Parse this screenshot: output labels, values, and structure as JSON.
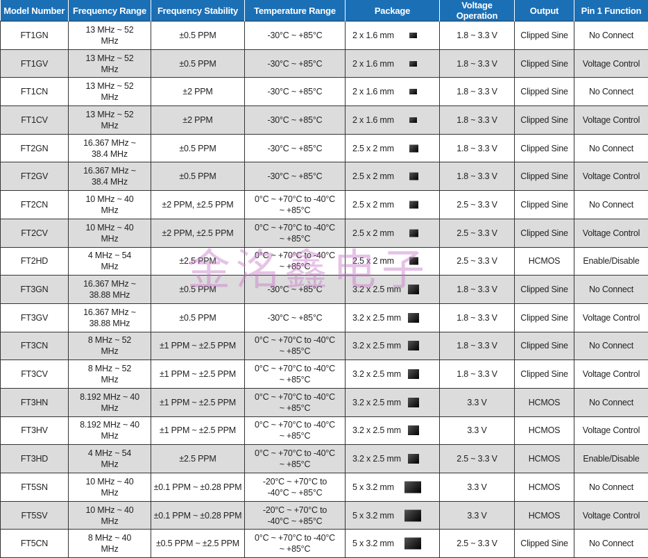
{
  "headers": [
    "Model Number",
    "Frequency Range",
    "Frequency Stability",
    "Temperature Range",
    "Package",
    "Voltage Operation",
    "Output",
    "Pin 1 Function"
  ],
  "watermark": "金洺鑫电子",
  "rows": [
    {
      "model": "FT1GN",
      "freq": "13 MHz ~ 52 MHz",
      "stab": "±0.5 PPM",
      "temp": "-30°C ~ +85°C",
      "pkg": "2 x 1.6 mm",
      "size": "s1",
      "volt": "1.8 ~ 3.3 V",
      "out": "Clipped Sine",
      "pin": "No Connect"
    },
    {
      "model": "FT1GV",
      "freq": "13 MHz ~ 52 MHz",
      "stab": "±0.5 PPM",
      "temp": "-30°C ~ +85°C",
      "pkg": "2 x 1.6 mm",
      "size": "s1",
      "volt": "1.8 ~ 3.3 V",
      "out": "Clipped Sine",
      "pin": "Voltage Control"
    },
    {
      "model": "FT1CN",
      "freq": "13 MHz ~ 52 MHz",
      "stab": "±2 PPM",
      "temp": "-30°C ~ +85°C",
      "pkg": "2 x 1.6 mm",
      "size": "s1",
      "volt": "1.8 ~ 3.3 V",
      "out": "Clipped Sine",
      "pin": "No Connect"
    },
    {
      "model": "FT1CV",
      "freq": "13 MHz ~ 52 MHz",
      "stab": "±2 PPM",
      "temp": "-30°C ~ +85°C",
      "pkg": "2 x 1.6 mm",
      "size": "s1",
      "volt": "1.8 ~ 3.3 V",
      "out": "Clipped Sine",
      "pin": "Voltage Control"
    },
    {
      "model": "FT2GN",
      "freq": "16.367 MHz ~ 38.4 MHz",
      "stab": "±0.5 PPM",
      "temp": "-30°C ~ +85°C",
      "pkg": "2.5 x 2 mm",
      "size": "s2",
      "volt": "1.8 ~ 3.3 V",
      "out": "Clipped Sine",
      "pin": "No Connect"
    },
    {
      "model": "FT2GV",
      "freq": "16.367 MHz ~ 38.4 MHz",
      "stab": "±0.5 PPM",
      "temp": "-30°C ~ +85°C",
      "pkg": "2.5 x 2 mm",
      "size": "s2",
      "volt": "1.8 ~ 3.3 V",
      "out": "Clipped Sine",
      "pin": "Voltage Control"
    },
    {
      "model": "FT2CN",
      "freq": "10 MHz ~ 40 MHz",
      "stab": "±2 PPM, ±2.5 PPM",
      "temp": "0°C ~ +70°C to -40°C ~ +85°C",
      "pkg": "2.5 x 2 mm",
      "size": "s2",
      "volt": "2.5 ~ 3.3 V",
      "out": "Clipped Sine",
      "pin": "No Connect"
    },
    {
      "model": "FT2CV",
      "freq": "10 MHz ~ 40 MHz",
      "stab": "±2 PPM, ±2.5 PPM",
      "temp": "0°C ~ +70°C to -40°C ~ +85°C",
      "pkg": "2.5 x 2 mm",
      "size": "s2",
      "volt": "2.5 ~ 3.3 V",
      "out": "Clipped Sine",
      "pin": "Voltage Control"
    },
    {
      "model": "FT2HD",
      "freq": "4 MHz ~ 54 MHz",
      "stab": "±2.5 PPM",
      "temp": "0°C ~ +70°C to -40°C ~ +85°C",
      "pkg": "2.5 x 2 mm",
      "size": "s2",
      "volt": "2.5 ~ 3.3 V",
      "out": "HCMOS",
      "pin": "Enable/Disable"
    },
    {
      "model": "FT3GN",
      "freq": "16.367 MHz ~ 38.88 MHz",
      "stab": "±0.5 PPM",
      "temp": "-30°C ~ +85°C",
      "pkg": "3.2 x 2.5 mm",
      "size": "s3",
      "volt": "1.8 ~ 3.3 V",
      "out": "Clipped Sine",
      "pin": "No Connect"
    },
    {
      "model": "FT3GV",
      "freq": "16.367 MHz ~ 38.88 MHz",
      "stab": "±0.5 PPM",
      "temp": "-30°C ~ +85°C",
      "pkg": "3.2 x 2.5 mm",
      "size": "s3",
      "volt": "1.8 ~ 3.3 V",
      "out": "Clipped Sine",
      "pin": "Voltage Control"
    },
    {
      "model": "FT3CN",
      "freq": "8 MHz ~ 52 MHz",
      "stab": "±1 PPM ~ ±2.5 PPM",
      "temp": "0°C ~ +70°C to -40°C ~ +85°C",
      "pkg": "3.2 x 2.5 mm",
      "size": "s3",
      "volt": "1.8 ~ 3.3 V",
      "out": "Clipped Sine",
      "pin": "No Connect"
    },
    {
      "model": "FT3CV",
      "freq": "8 MHz ~ 52 MHz",
      "stab": "±1 PPM ~ ±2.5 PPM",
      "temp": "0°C ~ +70°C to -40°C ~ +85°C",
      "pkg": "3.2 x 2.5 mm",
      "size": "s3",
      "volt": "1.8 ~ 3.3 V",
      "out": "Clipped Sine",
      "pin": "Voltage Control"
    },
    {
      "model": "FT3HN",
      "freq": "8.192 MHz ~ 40 MHz",
      "stab": "±1 PPM ~ ±2.5 PPM",
      "temp": "0°C ~ +70°C to -40°C ~ +85°C",
      "pkg": "3.2 x 2.5 mm",
      "size": "s3",
      "volt": "3.3 V",
      "out": "HCMOS",
      "pin": "No Connect"
    },
    {
      "model": "FT3HV",
      "freq": "8.192 MHz ~ 40 MHz",
      "stab": "±1 PPM ~ ±2.5 PPM",
      "temp": "0°C ~ +70°C to -40°C ~ +85°C",
      "pkg": "3.2 x 2.5 mm",
      "size": "s3",
      "volt": "3.3 V",
      "out": "HCMOS",
      "pin": "Voltage Control"
    },
    {
      "model": "FT3HD",
      "freq": "4 MHz ~ 54 MHz",
      "stab": "±2.5 PPM",
      "temp": "0°C ~ +70°C to -40°C ~ +85°C",
      "pkg": "3.2 x 2.5 mm",
      "size": "s3",
      "volt": "2.5 ~ 3.3 V",
      "out": "HCMOS",
      "pin": "Enable/Disable"
    },
    {
      "model": "FT5SN",
      "freq": "10 MHz ~ 40 MHz",
      "stab": "±0.1 PPM ~ ±0.28 PPM",
      "temp": "-20°C ~ +70°C to -40°C ~ +85°C",
      "pkg": "5 x 3.2 mm",
      "size": "s4",
      "volt": "3.3 V",
      "out": "HCMOS",
      "pin": "No Connect"
    },
    {
      "model": "FT5SV",
      "freq": "10 MHz ~ 40 MHz",
      "stab": "±0.1 PPM ~ ±0.28 PPM",
      "temp": "-20°C ~ +70°C to -40°C ~ +85°C",
      "pkg": "5 x 3.2 mm",
      "size": "s4",
      "volt": "3.3 V",
      "out": "HCMOS",
      "pin": "Voltage Control"
    },
    {
      "model": "FT5CN",
      "freq": "8 MHz ~ 40 MHz",
      "stab": "±0.5 PPM ~ ±2.5 PPM",
      "temp": "0°C ~ +70°C to -40°C ~ +85°C",
      "pkg": "5 x 3.2 mm",
      "size": "s4",
      "volt": "2.5 ~ 3.3 V",
      "out": "Clipped Sine",
      "pin": "No Connect"
    }
  ]
}
